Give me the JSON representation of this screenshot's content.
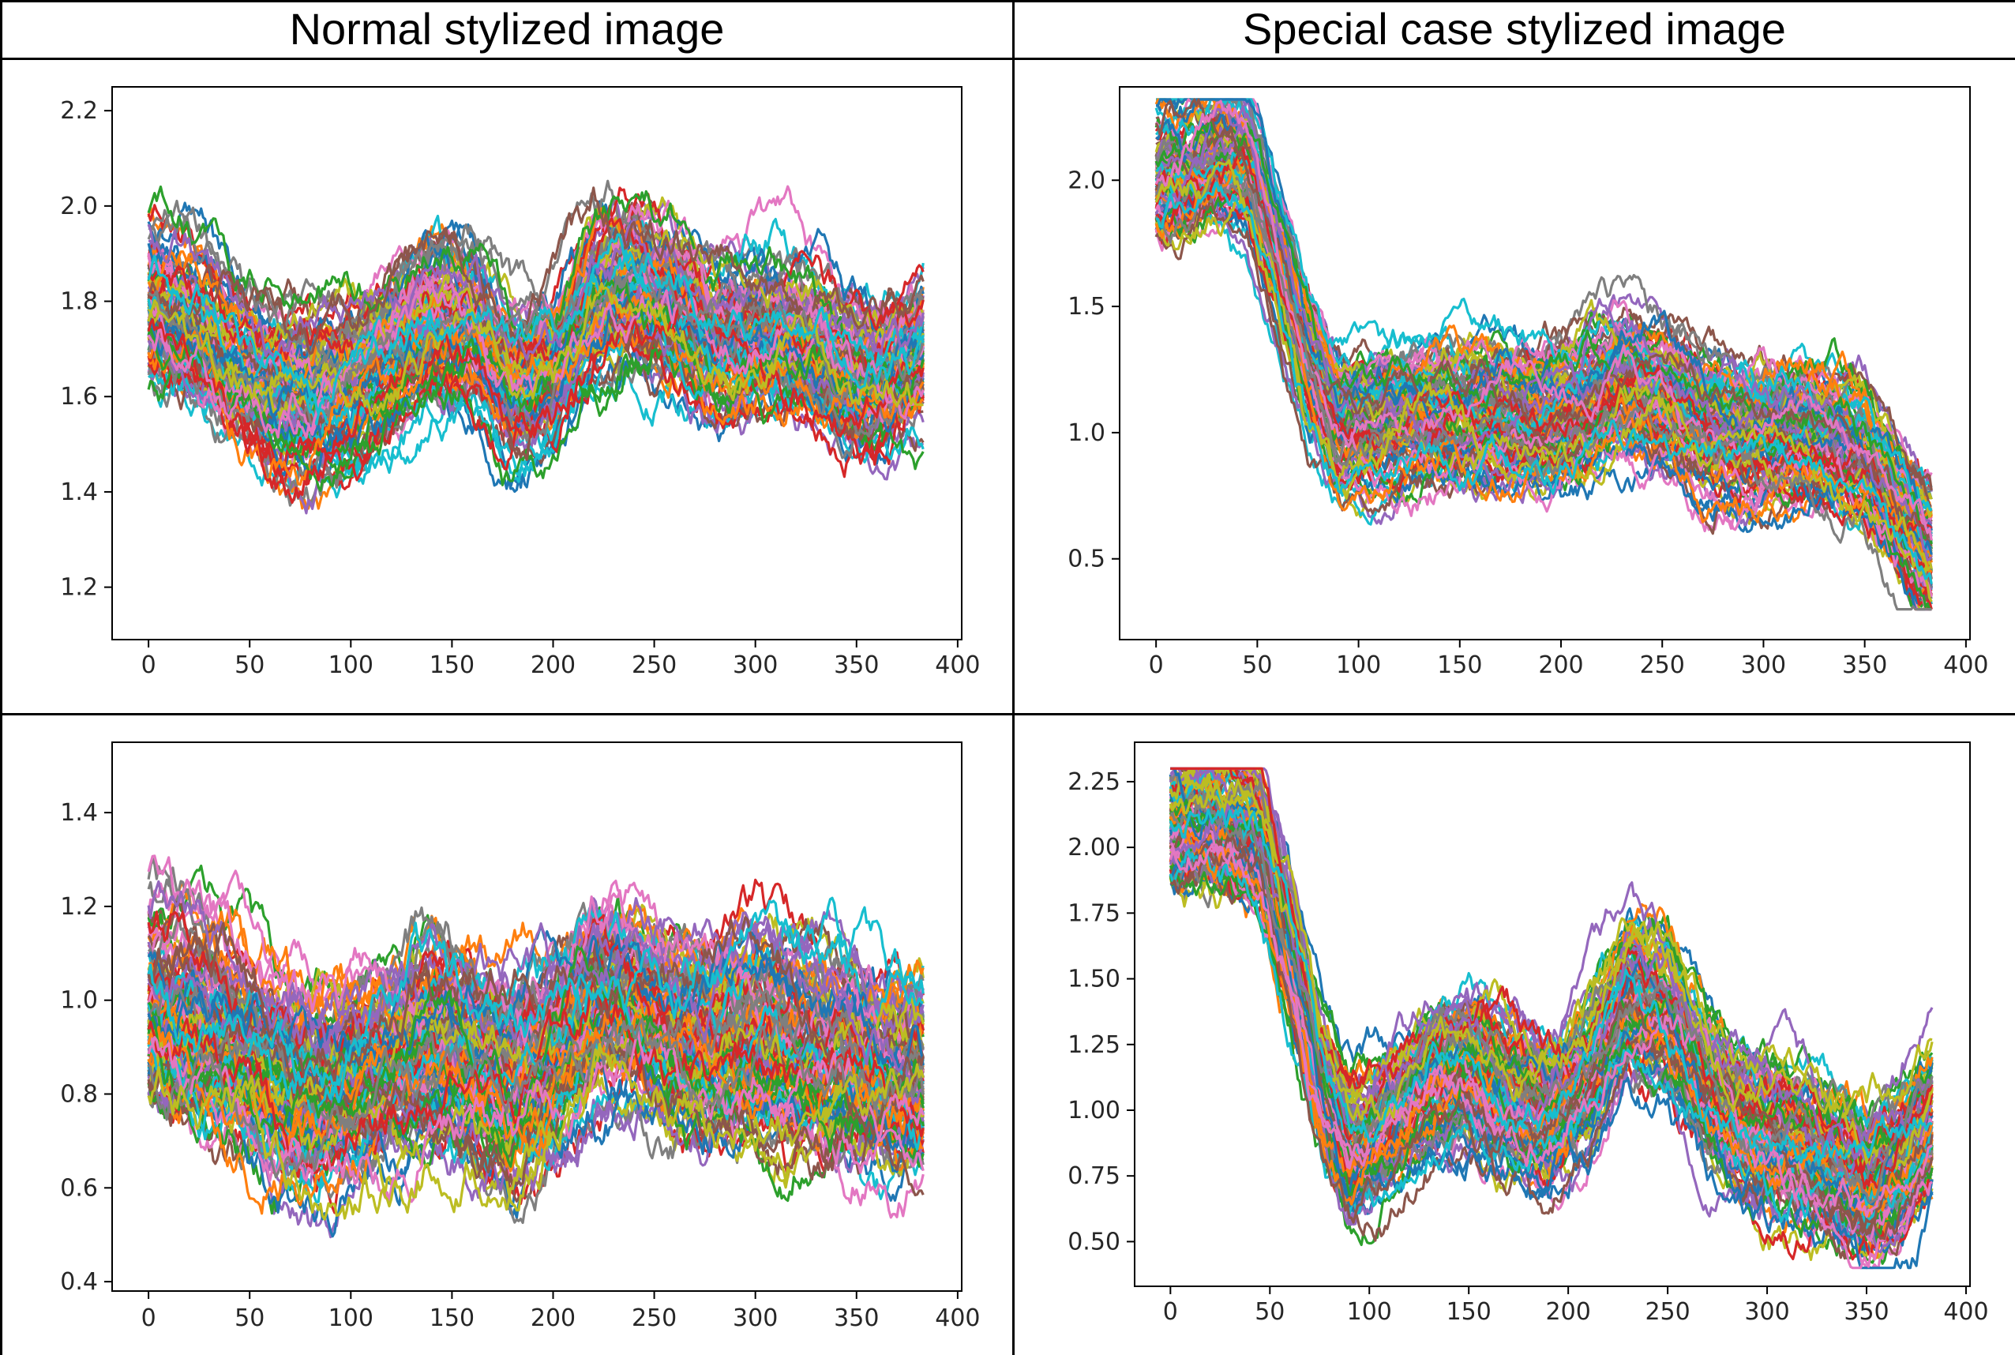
{
  "table": {
    "headers": [
      "Normal stylized image",
      "Special case stylized image"
    ]
  },
  "chart_data": [
    {
      "type": "line",
      "panel": "top-left",
      "title": "",
      "xlabel": "",
      "ylabel": "",
      "xlim": [
        -18,
        402
      ],
      "ylim": [
        1.09,
        2.25
      ],
      "xticks": [
        0,
        50,
        100,
        150,
        200,
        250,
        300,
        350,
        400
      ],
      "yticks": [
        1.2,
        1.4,
        1.6,
        1.8,
        2.0,
        2.2
      ],
      "ytick_labels": [
        "1.2",
        "1.4",
        "1.6",
        "1.8",
        "2.0",
        "2.2"
      ],
      "n_points": 384,
      "n_series": 110,
      "center_profile": {
        "x": [
          0,
          20,
          40,
          60,
          80,
          100,
          120,
          140,
          160,
          180,
          200,
          220,
          240,
          260,
          280,
          300,
          320,
          340,
          360,
          383
        ],
        "y": [
          1.78,
          1.75,
          1.68,
          1.62,
          1.6,
          1.63,
          1.7,
          1.76,
          1.74,
          1.62,
          1.66,
          1.8,
          1.84,
          1.8,
          1.72,
          1.73,
          1.72,
          1.66,
          1.63,
          1.68
        ]
      },
      "spread": 0.13,
      "y_min": 1.15,
      "y_max": 2.2
    },
    {
      "type": "line",
      "panel": "top-right",
      "title": "",
      "xlabel": "",
      "ylabel": "",
      "xlim": [
        -18,
        402
      ],
      "ylim": [
        0.18,
        2.37
      ],
      "xticks": [
        0,
        50,
        100,
        150,
        200,
        250,
        300,
        350,
        400
      ],
      "yticks": [
        0.5,
        1.0,
        1.5,
        2.0
      ],
      "ytick_labels": [
        "0.5",
        "1.0",
        "1.5",
        "2.0"
      ],
      "n_points": 384,
      "n_series": 110,
      "center_profile": {
        "x": [
          0,
          15,
          30,
          45,
          60,
          75,
          90,
          110,
          130,
          150,
          170,
          190,
          210,
          230,
          250,
          270,
          290,
          310,
          330,
          350,
          365,
          383
        ],
        "y": [
          2.0,
          2.02,
          2.08,
          2.05,
          1.7,
          1.3,
          1.05,
          1.05,
          1.1,
          1.1,
          1.07,
          1.05,
          1.1,
          1.2,
          1.15,
          1.05,
          1.0,
          1.02,
          0.98,
          0.9,
          0.7,
          0.48
        ]
      },
      "spread": 0.2,
      "y_min": 0.3,
      "y_max": 2.32
    },
    {
      "type": "line",
      "panel": "bottom-left",
      "title": "",
      "xlabel": "",
      "ylabel": "",
      "xlim": [
        -18,
        402
      ],
      "ylim": [
        0.38,
        1.55
      ],
      "xticks": [
        0,
        50,
        100,
        150,
        200,
        250,
        300,
        350,
        400
      ],
      "yticks": [
        0.4,
        0.6,
        0.8,
        1.0,
        1.2,
        1.4
      ],
      "ytick_labels": [
        "0.4",
        "0.6",
        "0.8",
        "1.0",
        "1.2",
        "1.4"
      ],
      "n_points": 384,
      "n_series": 110,
      "center_profile": {
        "x": [
          0,
          20,
          40,
          60,
          80,
          100,
          120,
          140,
          160,
          180,
          200,
          220,
          240,
          260,
          280,
          300,
          320,
          340,
          360,
          383
        ],
        "y": [
          0.98,
          0.95,
          0.9,
          0.84,
          0.8,
          0.82,
          0.86,
          0.9,
          0.88,
          0.82,
          0.88,
          0.98,
          0.98,
          0.92,
          0.9,
          0.92,
          0.9,
          0.88,
          0.84,
          0.82
        ]
      },
      "spread": 0.16,
      "y_min": 0.44,
      "y_max": 1.52
    },
    {
      "type": "line",
      "panel": "bottom-right",
      "title": "",
      "xlabel": "",
      "ylabel": "",
      "xlim": [
        -18,
        402
      ],
      "ylim": [
        0.33,
        2.4
      ],
      "xticks": [
        0,
        50,
        100,
        150,
        200,
        250,
        300,
        350,
        400
      ],
      "yticks": [
        0.5,
        0.75,
        1.0,
        1.25,
        1.5,
        1.75,
        2.0,
        2.25
      ],
      "ytick_labels": [
        "0.50",
        "0.75",
        "1.00",
        "1.25",
        "1.50",
        "1.75",
        "2.00",
        "2.25"
      ],
      "n_points": 384,
      "n_series": 110,
      "center_profile": {
        "x": [
          0,
          15,
          30,
          45,
          60,
          75,
          90,
          110,
          130,
          150,
          170,
          190,
          210,
          230,
          250,
          270,
          290,
          310,
          330,
          350,
          365,
          383
        ],
        "y": [
          2.08,
          2.08,
          2.06,
          2.0,
          1.6,
          1.1,
          0.82,
          0.95,
          1.1,
          1.15,
          1.05,
          0.95,
          1.1,
          1.4,
          1.35,
          1.05,
          0.9,
          0.85,
          0.78,
          0.68,
          0.75,
          0.95
        ]
      },
      "spread": 0.22,
      "y_min": 0.4,
      "y_max": 2.3
    }
  ],
  "colors": {
    "series_cycle": [
      "#1f77b4",
      "#ff7f0e",
      "#2ca02c",
      "#d62728",
      "#9467bd",
      "#8c564b",
      "#e377c2",
      "#7f7f7f",
      "#bcbd22",
      "#17becf"
    ],
    "axis": "#000000",
    "tick_text": "#262626",
    "table_border": "#000000"
  }
}
